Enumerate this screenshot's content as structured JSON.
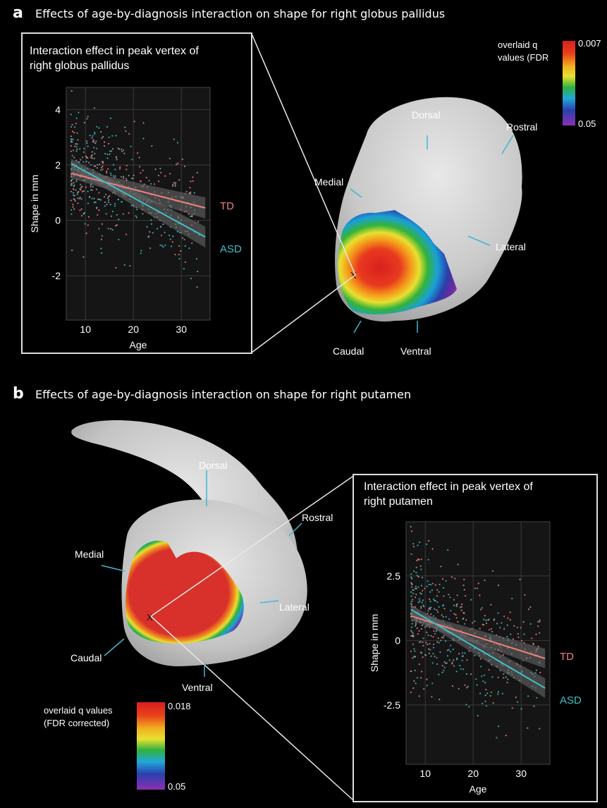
{
  "panels": {
    "a": {
      "letter": "a",
      "title": "Effects of age-by-diagnosis interaction on shape for right globus pallidus",
      "inset_title_line1": "Interaction effect in peak vertex of",
      "inset_title_line2": "right globus pallidus",
      "colorbar": {
        "label_line1": "overlaid q",
        "label_line2": "values (FDR",
        "max": "0.007",
        "min": "0.05"
      },
      "orientation_labels": [
        "Dorsal",
        "Rostral",
        "Medial",
        "Lateral",
        "Caudal",
        "Ventral"
      ],
      "peak_marker": "X"
    },
    "b": {
      "letter": "b",
      "title": "Effects of age-by-diagnosis interaction on shape for right putamen",
      "inset_title_line1": "Interaction effect in peak vertex of",
      "inset_title_line2": "right putamen",
      "colorbar": {
        "label_line1": "overlaid q values",
        "label_line2": "(FDR corrected)",
        "max": "0.018",
        "min": "0.05"
      },
      "orientation_labels": [
        "Dorsal",
        "Rostral",
        "Medial",
        "Lateral",
        "Caudal",
        "Ventral"
      ],
      "peak_marker": "X"
    }
  },
  "colors": {
    "TD": "#f08080",
    "ASD": "#40c0c8",
    "background": "#000000",
    "frame": "#dddddd"
  },
  "chart_data": [
    {
      "type": "scatter",
      "title": "",
      "xlabel": "Age",
      "ylabel": "Shape in mm",
      "xlim": [
        6,
        36
      ],
      "ylim": [
        -3.6,
        4.8
      ],
      "xticks": [
        10,
        20,
        30
      ],
      "yticks": [
        4,
        2,
        0,
        -2
      ],
      "grid": true,
      "series": [
        {
          "name": "TD",
          "color": "#f08080",
          "fit_line": [
            [
              7,
              1.7
            ],
            [
              35,
              0.45
            ]
          ]
        },
        {
          "name": "ASD",
          "color": "#40c0c8",
          "fit_line": [
            [
              7,
              2.05
            ],
            [
              35,
              -0.6
            ]
          ]
        }
      ]
    },
    {
      "type": "scatter",
      "title": "",
      "xlabel": "Age",
      "ylabel": "Shape in mm",
      "xlim": [
        6,
        36
      ],
      "ylim": [
        -4.8,
        4.6
      ],
      "xticks": [
        10,
        20,
        30
      ],
      "yticks": [
        2.5,
        0,
        -2.5
      ],
      "grid": true,
      "series": [
        {
          "name": "TD",
          "color": "#f08080",
          "fit_line": [
            [
              7,
              0.95
            ],
            [
              35,
              -0.7
            ]
          ]
        },
        {
          "name": "ASD",
          "color": "#40c0c8",
          "fit_line": [
            [
              7,
              1.2
            ],
            [
              35,
              -1.85
            ]
          ]
        }
      ]
    }
  ]
}
